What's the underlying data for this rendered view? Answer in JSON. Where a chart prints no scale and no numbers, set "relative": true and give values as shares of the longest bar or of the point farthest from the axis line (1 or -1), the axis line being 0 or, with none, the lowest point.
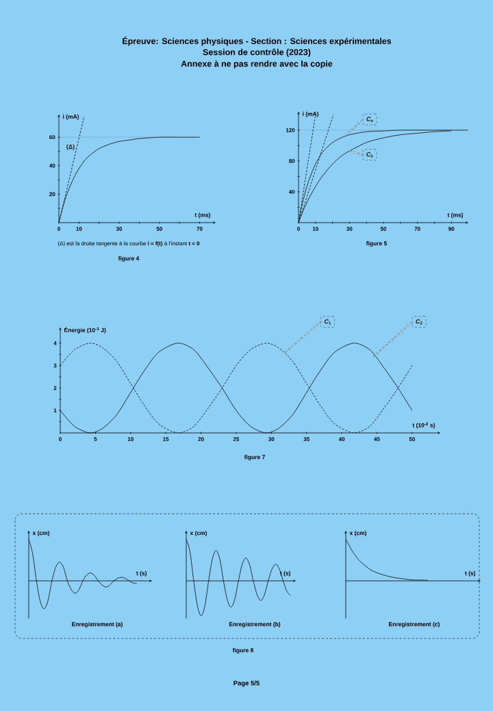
{
  "chart_data": [
    {
      "type": "line",
      "title": "Épreuve: Sciences physiques - Section : Sciences expérimentales",
      "subtitle": "Session de contrôle (2023)",
      "xlabel": "t (ms)",
      "ylabel": "i (mA)",
      "annotations": [
        "Annexe  à ne pas rendre avec la copie",
        "(Δ) est la droite tangente à la courbe **i = f(t)** à l'instant **t = 0**",
        "figure 4"
      ],
      "x": [
        0,
        2,
        4,
        6,
        8,
        10,
        13,
        16,
        20,
        25,
        30,
        35,
        40,
        50,
        60,
        70
      ],
      "series": [
        {
          "color": "#1c1c1c",
          "line_style": "solid",
          "values": [
            0,
            11,
            20,
            27,
            33,
            38,
            44,
            48,
            52,
            55,
            57,
            58,
            59,
            60,
            60,
            60
          ]
        },
        {
          "name": "(Δ)",
          "color": "#1c1c1c",
          "line_style": "dashed",
          "x": [
            0,
            12.5
          ],
          "values": [
            0,
            74
          ]
        }
      ],
      "ref_lines": [
        {
          "axis": "y",
          "value": 60,
          "color": "#1c1c1c",
          "line_style": "dotted"
        }
      ],
      "xlim": [
        0,
        78
      ],
      "ylim": [
        0,
        76
      ],
      "xticks": [
        0,
        10,
        {
          "value": 20,
          "label": null
        },
        30,
        {
          "value": 40,
          "label": null
        },
        50,
        {
          "value": 60,
          "label": null
        },
        70
      ],
      "yticks": [
        {
          "value": 10,
          "label": null
        },
        20,
        {
          "value": 30,
          "label": null
        },
        40,
        {
          "value": 50,
          "label": null
        },
        60
      ]
    },
    {
      "type": "line",
      "xlabel": "t (ms)",
      "ylabel": "i (mA)",
      "annotations": [
        "figure 5"
      ],
      "series": [
        {
          "name": "*C*$_{a}$",
          "color": "#1c1c1c",
          "line_style": "solid",
          "x": [
            0,
            2,
            4,
            6,
            8,
            10,
            13,
            16,
            20,
            25,
            30,
            40,
            50,
            60,
            80,
            100
          ],
          "values": [
            0,
            22,
            40,
            54,
            66,
            76,
            88,
            96,
            104,
            110,
            114,
            118,
            119,
            120,
            120,
            120
          ]
        },
        {
          "name": "*C*$_{b}$",
          "color": "#1c1c1c",
          "line_style": "solid",
          "x": [
            0,
            3,
            6,
            9,
            12,
            15,
            20,
            25,
            30,
            40,
            50,
            60,
            70,
            80,
            90
          ],
          "values": [
            0,
            17,
            31,
            43,
            54,
            63,
            76,
            86,
            93,
            104,
            110,
            114,
            116,
            118,
            119
          ]
        },
        {
          "color": "#1c1c1c",
          "line_style": "dashed",
          "x": [
            0,
            10
          ],
          "values": [
            0,
            140
          ]
        },
        {
          "color": "#1c1c1c",
          "line_style": "dashed",
          "x": [
            0,
            20.5
          ],
          "values": [
            0,
            140
          ]
        }
      ],
      "ref_lines": [
        {
          "axis": "y",
          "value": 120,
          "color": "#1c1c1c",
          "line_style": "dotted"
        }
      ],
      "xlim": [
        0,
        100
      ],
      "ylim": [
        0,
        144
      ],
      "xticks": [
        0,
        10,
        {
          "value": 20,
          "label": null
        },
        30,
        {
          "value": 40,
          "label": null
        },
        50,
        {
          "value": 60,
          "label": null
        },
        70,
        {
          "value": 80,
          "label": null
        },
        90
      ],
      "yticks": [
        {
          "value": 20,
          "label": null
        },
        40,
        {
          "value": 60,
          "label": null
        },
        80,
        {
          "value": 100,
          "label": null
        },
        120
      ]
    },
    {
      "type": "line",
      "xlabel": "t (10$^{-2}$ s)",
      "ylabel": "Énergie (10$^{-3}$ J)",
      "annotations": [
        "figure 7"
      ],
      "x": [
        0,
        2,
        4.2,
        6,
        8,
        10,
        12,
        14,
        16.7,
        19,
        21,
        23,
        25,
        27,
        29.2,
        31,
        33,
        35,
        37,
        39,
        41.7,
        44,
        46,
        48,
        50
      ],
      "series": [
        {
          "name": "*C*$_{1}$",
          "color": "#1c1c1c",
          "line_style": "dashed",
          "values": [
            3.0,
            3.7,
            4,
            3.8,
            3.2,
            2.2,
            1.2,
            0.4,
            0,
            0.3,
            1.1,
            2.0,
            3.0,
            3.7,
            4,
            3.8,
            3.2,
            2.2,
            1.2,
            0.4,
            0,
            0.3,
            1.1,
            2.0,
            3.0
          ]
        },
        {
          "name": "*C*$_{2}$",
          "color": "#1c1c1c",
          "line_style": "solid",
          "values": [
            1.0,
            0.3,
            0,
            0.2,
            0.8,
            1.8,
            2.8,
            3.6,
            4,
            3.7,
            2.9,
            2.0,
            1.0,
            0.3,
            0,
            0.2,
            0.8,
            1.8,
            2.8,
            3.6,
            4,
            3.7,
            2.9,
            2.0,
            1.0
          ]
        }
      ],
      "xlim": [
        0,
        54
      ],
      "ylim": [
        0,
        4.7
      ],
      "xticks": [
        0,
        5,
        10,
        15,
        20,
        25,
        30,
        35,
        40,
        45,
        50
      ],
      "yticks": [
        {
          "value": 0.5,
          "label": null
        },
        1,
        {
          "value": 1.5,
          "label": null
        },
        2,
        {
          "value": 2.5,
          "label": null
        },
        3,
        {
          "value": 3.5,
          "label": null
        },
        4
      ]
    },
    {
      "type": "line",
      "relative": true,
      "title": "Enregistrement (a)",
      "xlabel": "t (s)",
      "ylabel": "x (cm)",
      "annotations": [
        "figure 8",
        "Page 5/5"
      ],
      "color": "#1c1c1c",
      "categories": [
        null,
        null,
        null,
        null,
        null,
        null,
        null,
        null,
        null,
        null,
        null,
        null,
        null,
        null,
        null,
        null,
        null,
        null,
        null,
        null,
        null,
        null,
        null,
        null,
        null,
        null,
        null,
        null,
        null
      ],
      "values": [
        1.0,
        0.65,
        0,
        -0.5,
        -0.67,
        -0.47,
        0,
        0.33,
        0.45,
        0.32,
        0,
        -0.21,
        -0.3,
        -0.21,
        0,
        0.14,
        0.19,
        0.13,
        0,
        -0.1,
        -0.15,
        -0.1,
        0,
        0.06,
        0.085,
        0.06,
        0,
        -0.05,
        -0.07
      ]
    },
    {
      "type": "line",
      "relative": true,
      "title": "Enregistrement (b)",
      "xlabel": "t (s)",
      "ylabel": "x (cm)",
      "color": "#1c1c1c",
      "categories": [
        null,
        null,
        null,
        null,
        null,
        null,
        null,
        null,
        null,
        null,
        null,
        null,
        null,
        null,
        null,
        null,
        null,
        null,
        null,
        null,
        null,
        null,
        null,
        null,
        null,
        null,
        null,
        null,
        null
      ],
      "values": [
        1.0,
        0.7,
        0,
        -0.6,
        -0.84,
        -0.6,
        0,
        0.52,
        0.73,
        0.52,
        0,
        -0.45,
        -0.63,
        -0.45,
        0,
        0.39,
        0.55,
        0.39,
        0,
        -0.33,
        -0.47,
        -0.33,
        0,
        0.28,
        0.4,
        0.28,
        0,
        -0.25,
        -0.35
      ]
    },
    {
      "type": "line",
      "relative": true,
      "title": "Enregistrement (c)",
      "xlabel": "t (s)",
      "ylabel": "x (cm)",
      "color": "#1c1c1c",
      "categories": [
        null,
        null,
        null,
        null,
        null,
        null,
        null,
        null,
        null,
        null,
        null,
        null,
        null,
        null
      ],
      "values": [
        1.0,
        0.72,
        0.51,
        0.37,
        0.26,
        0.19,
        0.14,
        0.1,
        0.07,
        0.05,
        0.03,
        0.02,
        0.02,
        0.01
      ]
    }
  ]
}
